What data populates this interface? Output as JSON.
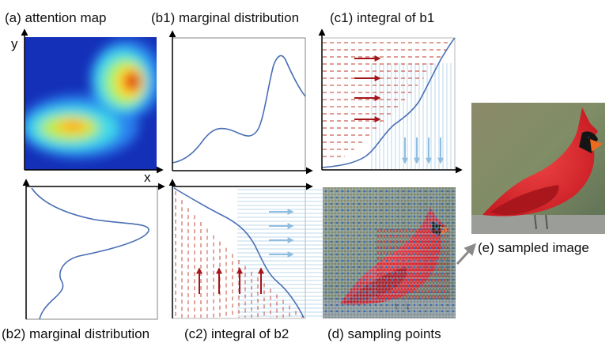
{
  "labels": {
    "a": "(a) attention map",
    "b1": "(b1) marginal distribution",
    "c1": "(c1) integral of b1",
    "b2": "(b2) marginal distribution",
    "c2": "(c2) integral of b2",
    "d": "(d) sampling points",
    "e": "(e) sampled image",
    "axis_x": "x",
    "axis_y": "y"
  },
  "colors": {
    "curve": "#4a6fb5",
    "dash": "#c0392b",
    "red_arrow": "#a4161a",
    "blue_arrow": "#8fbde0",
    "grid_line": "#a9cde6",
    "gray_arrow": "#8a8a8a"
  },
  "images": {
    "attention_map": "heatmap",
    "bird_sampling": "cardinal-bird-with-sampling-grid",
    "bird_sampled": "cardinal-bird-sampled"
  }
}
